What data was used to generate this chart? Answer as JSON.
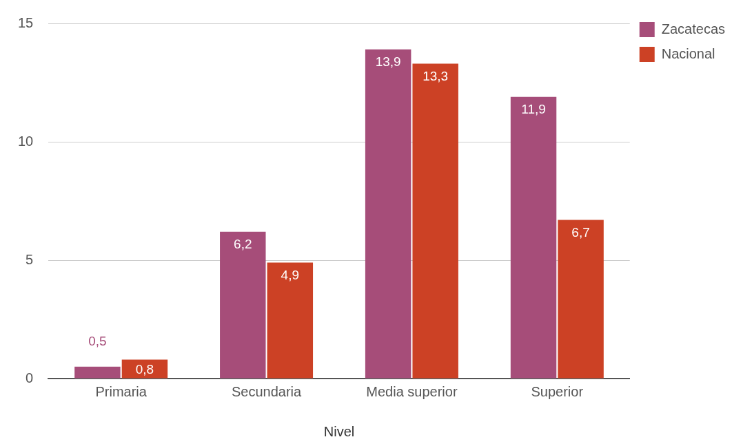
{
  "chart_data": {
    "type": "bar",
    "xlabel": "Nivel",
    "categories": [
      "Primaria",
      "Secundaria",
      "Media superior",
      "Superior"
    ],
    "series": [
      {
        "name": "Zacatecas",
        "color": "#a64d79",
        "values": [
          0.5,
          6.2,
          13.9,
          11.9
        ],
        "value_labels": [
          "0,5",
          "6,2",
          "13,9",
          "11,9"
        ]
      },
      {
        "name": "Nacional",
        "color": "#cc4125",
        "values": [
          0.8,
          4.9,
          13.3,
          6.7
        ],
        "value_labels": [
          "0,8",
          "4,9",
          "13,3",
          "6,7"
        ]
      }
    ],
    "ylim": [
      0,
      15
    ],
    "yticks": [
      0,
      5,
      10,
      15
    ],
    "grid": "y",
    "legend": "top right"
  }
}
